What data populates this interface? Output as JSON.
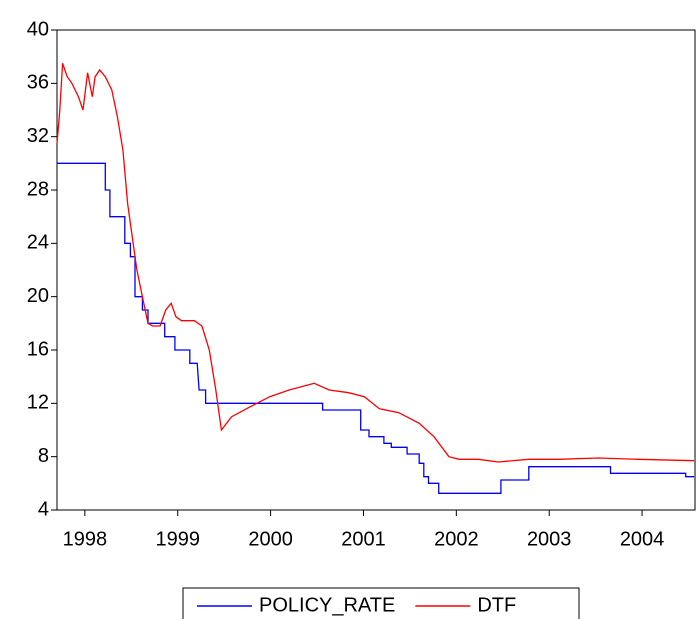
{
  "chart_data": {
    "type": "line",
    "xlim": [
      1997.7,
      2004.57
    ],
    "xticks": [
      1998,
      1999,
      2000,
      2001,
      2002,
      2003,
      2004
    ],
    "ylim": [
      4,
      40
    ],
    "yticks": [
      4,
      8,
      12,
      16,
      20,
      24,
      28,
      32,
      36,
      40
    ],
    "legend": "bottom",
    "series": [
      {
        "name": "POLICY_RATE",
        "color": "#0000ff",
        "x": [
          1997.7,
          1998.22,
          1998.22,
          1998.27,
          1998.27,
          1998.43,
          1998.43,
          1998.49,
          1998.49,
          1998.54,
          1998.54,
          1998.62,
          1998.62,
          1998.68,
          1998.68,
          1998.86,
          1998.86,
          1998.97,
          1998.97,
          1999.13,
          1999.13,
          1999.21,
          1999.23,
          1999.3,
          1999.3,
          2000.56,
          2000.56,
          2000.97,
          2000.97,
          2001.06,
          2001.06,
          2001.22,
          2001.22,
          2001.3,
          2001.3,
          2001.47,
          2001.47,
          2001.6,
          2001.6,
          2001.65,
          2001.65,
          2001.7,
          2001.7,
          2001.81,
          2001.81,
          2002.48,
          2002.48,
          2002.78,
          2002.78,
          2003.66,
          2003.66,
          2004.47,
          2004.47,
          2004.56
        ],
        "values": [
          30,
          30,
          28,
          28,
          26,
          26,
          24,
          24,
          23,
          23,
          20,
          20,
          19,
          19,
          18,
          18,
          17,
          17,
          16,
          16,
          15,
          15,
          13,
          13,
          12,
          12,
          11.5,
          11.5,
          10,
          10,
          9.5,
          9.5,
          9,
          9,
          8.7,
          8.7,
          8.2,
          8.2,
          7.5,
          7.5,
          6.5,
          6.5,
          6,
          6,
          5.25,
          5.25,
          6.25,
          6.25,
          7.25,
          7.25,
          6.75,
          6.75,
          6.5,
          6.5
        ]
      },
      {
        "name": "DTF",
        "color": "#ff0000",
        "x": [
          1997.7,
          1997.73,
          1997.76,
          1997.81,
          1997.86,
          1997.93,
          1997.98,
          1998.03,
          1998.08,
          1998.11,
          1998.16,
          1998.22,
          1998.29,
          1998.35,
          1998.41,
          1998.46,
          1998.5,
          1998.56,
          1998.62,
          1998.68,
          1998.73,
          1998.81,
          1998.87,
          1998.93,
          1998.98,
          1999.04,
          1999.18,
          1999.26,
          1999.34,
          1999.41,
          1999.47,
          1999.58,
          1999.77,
          1999.99,
          2000.2,
          2000.47,
          2000.63,
          2000.84,
          2001.01,
          2001.17,
          2001.38,
          2001.6,
          2001.76,
          2001.92,
          2002.03,
          2002.24,
          2002.45,
          2002.78,
          2003.1,
          2003.53,
          2003.96,
          2004.56
        ],
        "values": [
          31.5,
          34,
          37.5,
          36.5,
          36,
          35,
          34,
          36.8,
          35,
          36.5,
          37,
          36.5,
          35.5,
          33.5,
          31,
          27,
          25,
          22,
          20,
          18,
          17.8,
          17.8,
          19,
          19.5,
          18.5,
          18.2,
          18.2,
          17.8,
          16,
          13,
          10,
          11,
          11.7,
          12.5,
          13,
          13.5,
          13,
          12.8,
          12.5,
          11.6,
          11.3,
          10.5,
          9.5,
          8,
          7.8,
          7.8,
          7.6,
          7.8,
          7.8,
          7.9,
          7.8,
          7.7
        ]
      }
    ]
  }
}
